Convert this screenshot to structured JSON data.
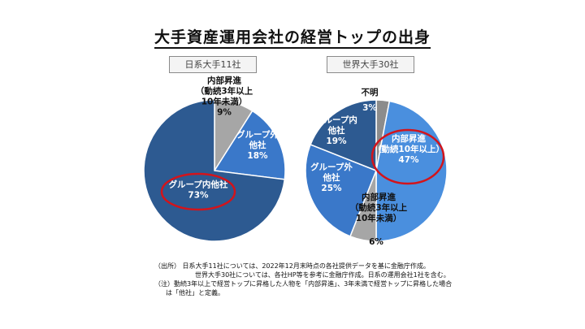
{
  "title": "大手資産運用会社の経営トップの出身",
  "chart_data": [
    {
      "type": "pie",
      "title": "日系大手11社",
      "series": [
        {
          "name": "内部昇進（動続3年以上10年未満）",
          "label_lines": [
            "内部昇進",
            "（動続3年以上",
            "10年未満）",
            "9%"
          ],
          "value": 9,
          "color": "#a6a6a6",
          "text": "dark"
        },
        {
          "name": "グループ外他社",
          "label_lines": [
            "グループ外",
            "他社",
            "18%"
          ],
          "value": 18,
          "color": "#3a78c9",
          "text": "light"
        },
        {
          "name": "グループ内他社",
          "label_lines": [
            "グループ内他社",
            "73%"
          ],
          "value": 73,
          "color": "#2d5a91",
          "text": "light",
          "highlight": true
        }
      ]
    },
    {
      "type": "pie",
      "title": "世界大手30社",
      "series": [
        {
          "name": "不明",
          "label_lines": [
            "3%"
          ],
          "value": 3,
          "color": "#8c8c8c",
          "text": "light",
          "outside_label": "不明"
        },
        {
          "name": "内部昇進（動続10年以上）",
          "label_lines": [
            "内部昇進",
            "（動続10年以上）",
            "47%"
          ],
          "value": 47,
          "color": "#4a8fde",
          "text": "light",
          "highlight": true
        },
        {
          "name": "内部昇進（動続3年以上10年未満）",
          "label_lines": [
            "6%"
          ],
          "value": 6,
          "color": "#a6a6a6",
          "text": "dark",
          "outside_lines": [
            "内部昇進",
            "（動続3年以上",
            "10年未満）"
          ]
        },
        {
          "name": "グループ外他社",
          "label_lines": [
            "グループ外",
            "他社",
            "25%"
          ],
          "value": 25,
          "color": "#3a78c9",
          "text": "light"
        },
        {
          "name": "グループ内他社",
          "label_lines": [
            "グループ内",
            "他社",
            "19%"
          ],
          "value": 19,
          "color": "#2d5a91",
          "text": "light"
        }
      ]
    }
  ],
  "notes": {
    "line1": "（出所） 日系大手11社については、2022年12月末時点の各社提供データを基に金融庁作成。",
    "line2": "世界大手30社については、各社HP等を参考に金融庁作成。日系の運用会社1社を含む。",
    "line3": "（注）動続3年以上で経営トップに昇格した人物を「内部昇進」、3年未満で経営トップに昇格した場合",
    "line4": "は「他社」と定義。"
  }
}
